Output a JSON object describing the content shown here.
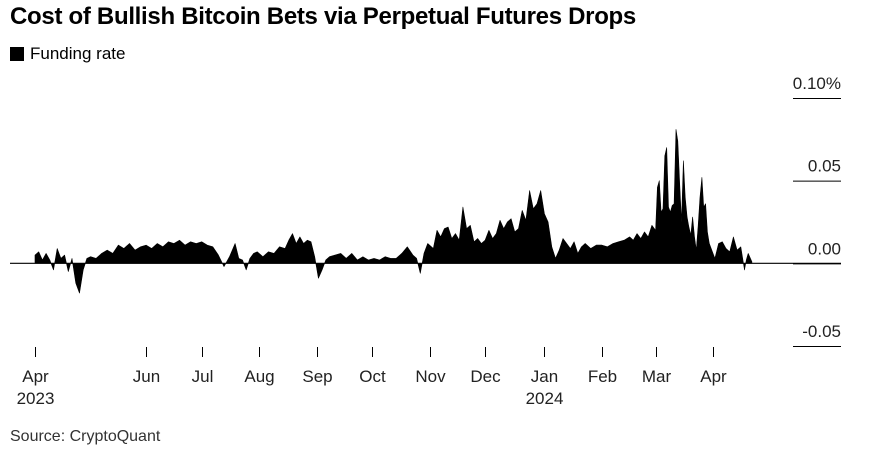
{
  "source": "Source: CryptoQuant",
  "colors": {
    "series": "#000000",
    "axis": "#000000",
    "text": "#222222"
  },
  "chart_data": {
    "type": "area",
    "title": "Cost of Bullish Bitcoin Bets via Perpetual Futures Drops",
    "legend": {
      "position": "top-left",
      "entries": [
        "Funding rate"
      ]
    },
    "xlabel": "",
    "ylabel": "",
    "ylim": [
      -0.05,
      0.1
    ],
    "grid": false,
    "y_ticks": [
      {
        "value": 0.1,
        "label": "0.10%"
      },
      {
        "value": 0.05,
        "label": "0.05"
      },
      {
        "value": 0.0,
        "label": "0.00"
      },
      {
        "value": -0.05,
        "label": "-0.05"
      }
    ],
    "x_ticks": [
      {
        "date": "2023-04-01",
        "label": "Apr",
        "year": "2023"
      },
      {
        "date": "2023-05-31",
        "label": "Jun",
        "year": ""
      },
      {
        "date": "2023-06-30",
        "label": "Jul",
        "year": ""
      },
      {
        "date": "2023-07-31",
        "label": "Aug",
        "year": ""
      },
      {
        "date": "2023-08-31",
        "label": "Sep",
        "year": ""
      },
      {
        "date": "2023-09-30",
        "label": "Oct",
        "year": ""
      },
      {
        "date": "2023-10-31",
        "label": "Nov",
        "year": ""
      },
      {
        "date": "2023-11-30",
        "label": "Dec",
        "year": ""
      },
      {
        "date": "2024-01-01",
        "label": "Jan",
        "year": "2024"
      },
      {
        "date": "2024-02-01",
        "label": "Feb",
        "year": ""
      },
      {
        "date": "2024-03-01",
        "label": "Mar",
        "year": ""
      },
      {
        "date": "2024-04-01",
        "label": "Apr",
        "year": ""
      }
    ],
    "series": [
      {
        "name": "Funding rate",
        "points": [
          [
            "2023-04-01",
            0.005
          ],
          [
            "2023-04-03",
            0.007
          ],
          [
            "2023-04-05",
            0.002
          ],
          [
            "2023-04-07",
            0.006
          ],
          [
            "2023-04-09",
            0.002
          ],
          [
            "2023-04-11",
            -0.004
          ],
          [
            "2023-04-13",
            0.009
          ],
          [
            "2023-04-15",
            0.003
          ],
          [
            "2023-04-17",
            0.005
          ],
          [
            "2023-04-19",
            -0.005
          ],
          [
            "2023-04-21",
            0.003
          ],
          [
            "2023-04-23",
            -0.012
          ],
          [
            "2023-04-25",
            -0.018
          ],
          [
            "2023-04-27",
            -0.004
          ],
          [
            "2023-04-29",
            0.003
          ],
          [
            "2023-05-01",
            0.004
          ],
          [
            "2023-05-04",
            0.003
          ],
          [
            "2023-05-07",
            0.006
          ],
          [
            "2023-05-10",
            0.008
          ],
          [
            "2023-05-13",
            0.006
          ],
          [
            "2023-05-16",
            0.011
          ],
          [
            "2023-05-19",
            0.009
          ],
          [
            "2023-05-22",
            0.012
          ],
          [
            "2023-05-25",
            0.008
          ],
          [
            "2023-05-28",
            0.01
          ],
          [
            "2023-05-31",
            0.011
          ],
          [
            "2023-06-03",
            0.009
          ],
          [
            "2023-06-06",
            0.012
          ],
          [
            "2023-06-09",
            0.01
          ],
          [
            "2023-06-12",
            0.013
          ],
          [
            "2023-06-15",
            0.012
          ],
          [
            "2023-06-18",
            0.014
          ],
          [
            "2023-06-21",
            0.011
          ],
          [
            "2023-06-24",
            0.013
          ],
          [
            "2023-06-27",
            0.012
          ],
          [
            "2023-06-30",
            0.013
          ],
          [
            "2023-07-03",
            0.011
          ],
          [
            "2023-07-06",
            0.01
          ],
          [
            "2023-07-09",
            0.005
          ],
          [
            "2023-07-12",
            -0.002
          ],
          [
            "2023-07-15",
            0.004
          ],
          [
            "2023-07-18",
            0.012
          ],
          [
            "2023-07-20",
            0.003
          ],
          [
            "2023-07-22",
            0.002
          ],
          [
            "2023-07-24",
            -0.004
          ],
          [
            "2023-07-26",
            0.003
          ],
          [
            "2023-07-28",
            0.006
          ],
          [
            "2023-07-30",
            0.007
          ],
          [
            "2023-08-02",
            0.004
          ],
          [
            "2023-08-05",
            0.007
          ],
          [
            "2023-08-08",
            0.006
          ],
          [
            "2023-08-11",
            0.01
          ],
          [
            "2023-08-14",
            0.009
          ],
          [
            "2023-08-16",
            0.014
          ],
          [
            "2023-08-18",
            0.018
          ],
          [
            "2023-08-20",
            0.012
          ],
          [
            "2023-08-22",
            0.016
          ],
          [
            "2023-08-24",
            0.012
          ],
          [
            "2023-08-26",
            0.014
          ],
          [
            "2023-08-28",
            0.013
          ],
          [
            "2023-08-30",
            0.004
          ],
          [
            "2023-09-01",
            -0.009
          ],
          [
            "2023-09-03",
            -0.004
          ],
          [
            "2023-09-05",
            0.002
          ],
          [
            "2023-09-07",
            0.004
          ],
          [
            "2023-09-10",
            0.005
          ],
          [
            "2023-09-13",
            0.006
          ],
          [
            "2023-09-16",
            0.003
          ],
          [
            "2023-09-19",
            0.006
          ],
          [
            "2023-09-22",
            0.002
          ],
          [
            "2023-09-25",
            0.004
          ],
          [
            "2023-09-28",
            0.002
          ],
          [
            "2023-10-01",
            0.003
          ],
          [
            "2023-10-04",
            0.002
          ],
          [
            "2023-10-07",
            0.004
          ],
          [
            "2023-10-10",
            0.003
          ],
          [
            "2023-10-13",
            0.003
          ],
          [
            "2023-10-16",
            0.006
          ],
          [
            "2023-10-19",
            0.01
          ],
          [
            "2023-10-22",
            0.005
          ],
          [
            "2023-10-24",
            0.003
          ],
          [
            "2023-10-26",
            -0.006
          ],
          [
            "2023-10-28",
            0.006
          ],
          [
            "2023-10-30",
            0.012
          ],
          [
            "2023-11-02",
            0.009
          ],
          [
            "2023-11-04",
            0.02
          ],
          [
            "2023-11-06",
            0.016
          ],
          [
            "2023-11-08",
            0.021
          ],
          [
            "2023-11-10",
            0.022
          ],
          [
            "2023-11-12",
            0.015
          ],
          [
            "2023-11-14",
            0.018
          ],
          [
            "2023-11-16",
            0.014
          ],
          [
            "2023-11-18",
            0.034
          ],
          [
            "2023-11-20",
            0.021
          ],
          [
            "2023-11-22",
            0.023
          ],
          [
            "2023-11-24",
            0.013
          ],
          [
            "2023-11-26",
            0.015
          ],
          [
            "2023-11-28",
            0.012
          ],
          [
            "2023-11-30",
            0.014
          ],
          [
            "2023-12-02",
            0.02
          ],
          [
            "2023-12-04",
            0.015
          ],
          [
            "2023-12-06",
            0.018
          ],
          [
            "2023-12-08",
            0.026
          ],
          [
            "2023-12-10",
            0.021
          ],
          [
            "2023-12-12",
            0.025
          ],
          [
            "2023-12-14",
            0.027
          ],
          [
            "2023-12-16",
            0.019
          ],
          [
            "2023-12-18",
            0.021
          ],
          [
            "2023-12-20",
            0.032
          ],
          [
            "2023-12-22",
            0.026
          ],
          [
            "2023-12-24",
            0.044
          ],
          [
            "2023-12-26",
            0.033
          ],
          [
            "2023-12-28",
            0.036
          ],
          [
            "2023-12-30",
            0.044
          ],
          [
            "2024-01-01",
            0.03
          ],
          [
            "2024-01-03",
            0.025
          ],
          [
            "2024-01-05",
            0.01
          ],
          [
            "2024-01-07",
            0.003
          ],
          [
            "2024-01-09",
            0.008
          ],
          [
            "2024-01-11",
            0.015
          ],
          [
            "2024-01-13",
            0.012
          ],
          [
            "2024-01-15",
            0.009
          ],
          [
            "2024-01-17",
            0.013
          ],
          [
            "2024-01-19",
            0.006
          ],
          [
            "2024-01-21",
            0.01
          ],
          [
            "2024-01-23",
            0.012
          ],
          [
            "2024-01-26",
            0.009
          ],
          [
            "2024-01-29",
            0.011
          ],
          [
            "2024-02-01",
            0.011
          ],
          [
            "2024-02-04",
            0.01
          ],
          [
            "2024-02-07",
            0.012
          ],
          [
            "2024-02-10",
            0.013
          ],
          [
            "2024-02-13",
            0.014
          ],
          [
            "2024-02-16",
            0.016
          ],
          [
            "2024-02-18",
            0.014
          ],
          [
            "2024-02-20",
            0.018
          ],
          [
            "2024-02-22",
            0.015
          ],
          [
            "2024-02-24",
            0.019
          ],
          [
            "2024-02-26",
            0.016
          ],
          [
            "2024-02-28",
            0.023
          ],
          [
            "2024-03-01",
            0.02
          ],
          [
            "2024-03-02",
            0.046
          ],
          [
            "2024-03-03",
            0.05
          ],
          [
            "2024-03-04",
            0.031
          ],
          [
            "2024-03-05",
            0.033
          ],
          [
            "2024-03-06",
            0.065
          ],
          [
            "2024-03-07",
            0.07
          ],
          [
            "2024-03-08",
            0.034
          ],
          [
            "2024-03-09",
            0.031
          ],
          [
            "2024-03-10",
            0.035
          ],
          [
            "2024-03-11",
            0.036
          ],
          [
            "2024-03-12",
            0.081
          ],
          [
            "2024-03-13",
            0.074
          ],
          [
            "2024-03-14",
            0.048
          ],
          [
            "2024-03-15",
            0.025
          ],
          [
            "2024-03-16",
            0.062
          ],
          [
            "2024-03-17",
            0.04
          ],
          [
            "2024-03-18",
            0.028
          ],
          [
            "2024-03-19",
            0.022
          ],
          [
            "2024-03-20",
            0.017
          ],
          [
            "2024-03-21",
            0.028
          ],
          [
            "2024-03-22",
            0.016
          ],
          [
            "2024-03-23",
            0.008
          ],
          [
            "2024-03-24",
            0.023
          ],
          [
            "2024-03-25",
            0.04
          ],
          [
            "2024-03-26",
            0.052
          ],
          [
            "2024-03-27",
            0.034
          ],
          [
            "2024-03-28",
            0.036
          ],
          [
            "2024-03-29",
            0.019
          ],
          [
            "2024-03-30",
            0.012
          ],
          [
            "2024-04-01",
            0.006
          ],
          [
            "2024-04-02",
            0.003
          ],
          [
            "2024-04-04",
            0.012
          ],
          [
            "2024-04-06",
            0.013
          ],
          [
            "2024-04-08",
            0.009
          ],
          [
            "2024-04-10",
            0.007
          ],
          [
            "2024-04-12",
            0.016
          ],
          [
            "2024-04-14",
            0.008
          ],
          [
            "2024-04-16",
            0.01
          ],
          [
            "2024-04-18",
            -0.004
          ],
          [
            "2024-04-19",
            0.002
          ],
          [
            "2024-04-20",
            0.006
          ],
          [
            "2024-04-22",
            0.001
          ]
        ]
      }
    ]
  }
}
